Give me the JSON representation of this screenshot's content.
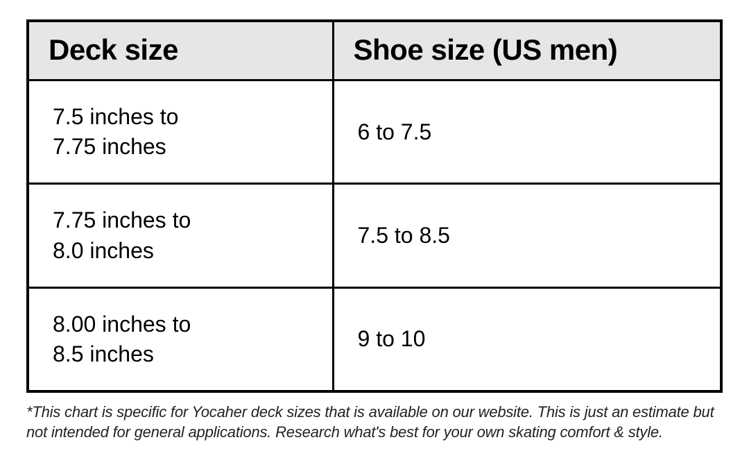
{
  "table": {
    "type": "table",
    "header_bg": "#e6e6e6",
    "border_color": "#000000",
    "header_fontsize": 42,
    "cell_fontsize": 32,
    "columns": [
      {
        "label": "Deck size",
        "width_pct": 44
      },
      {
        "label": "Shoe size (US men)",
        "width_pct": 56
      }
    ],
    "rows": [
      {
        "deck_line1": "7.5 inches to",
        "deck_line2": "7.75 inches",
        "shoe": "6 to 7.5"
      },
      {
        "deck_line1": "7.75 inches to",
        "deck_line2": "8.0 inches",
        "shoe": "7.5 to 8.5"
      },
      {
        "deck_line1": "8.00 inches to",
        "deck_line2": "8.5 inches",
        "shoe": "9 to 10"
      }
    ]
  },
  "footnote": "*This chart is specific for Yocaher deck sizes that is available on our website. This is just an estimate but not intended for general applications. Research what's best for your own skating comfort & style."
}
